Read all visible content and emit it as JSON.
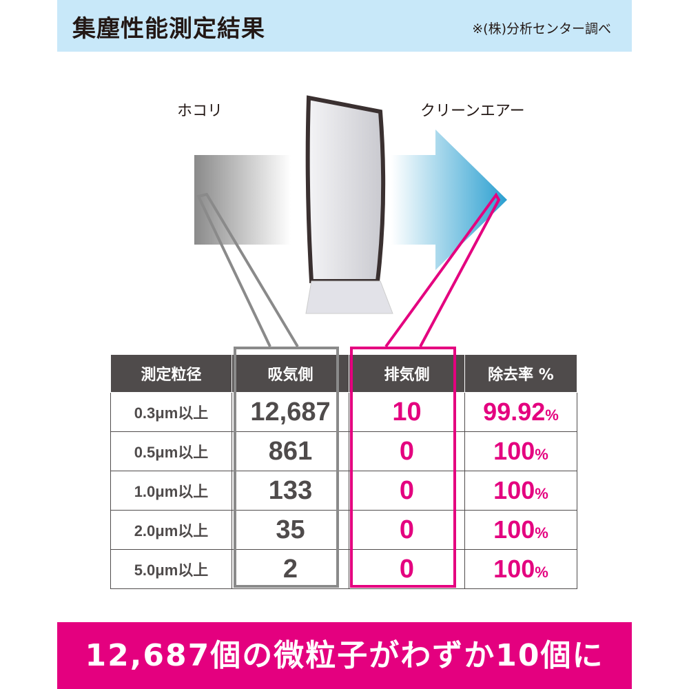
{
  "header": {
    "title": "集塵性能測定結果",
    "note": "※(株)分析センター調べ"
  },
  "diagram": {
    "dust_label": "ホコリ",
    "clean_label": "クリーンエアー"
  },
  "colors": {
    "accent": "#e4007f",
    "header_bg": "#c8e8f9",
    "table_header": "#4f4b4b"
  },
  "table": {
    "headers": [
      "測定粒径",
      "吸気側",
      "排気側",
      "除去率 %"
    ],
    "rows": [
      {
        "size": "0.3μm以上",
        "intake": "12,687",
        "exhaust": "10",
        "rate": "99.92",
        "unit": "%"
      },
      {
        "size": "0.5μm以上",
        "intake": "861",
        "exhaust": "0",
        "rate": "100",
        "unit": "%"
      },
      {
        "size": "1.0μm以上",
        "intake": "133",
        "exhaust": "0",
        "rate": "100",
        "unit": "%"
      },
      {
        "size": "2.0μm以上",
        "intake": "35",
        "exhaust": "0",
        "rate": "100",
        "unit": "%"
      },
      {
        "size": "5.0μm以上",
        "intake": "2",
        "exhaust": "0",
        "rate": "100",
        "unit": "%"
      }
    ]
  },
  "banner": "12,687個の微粒子がわずか10個に"
}
